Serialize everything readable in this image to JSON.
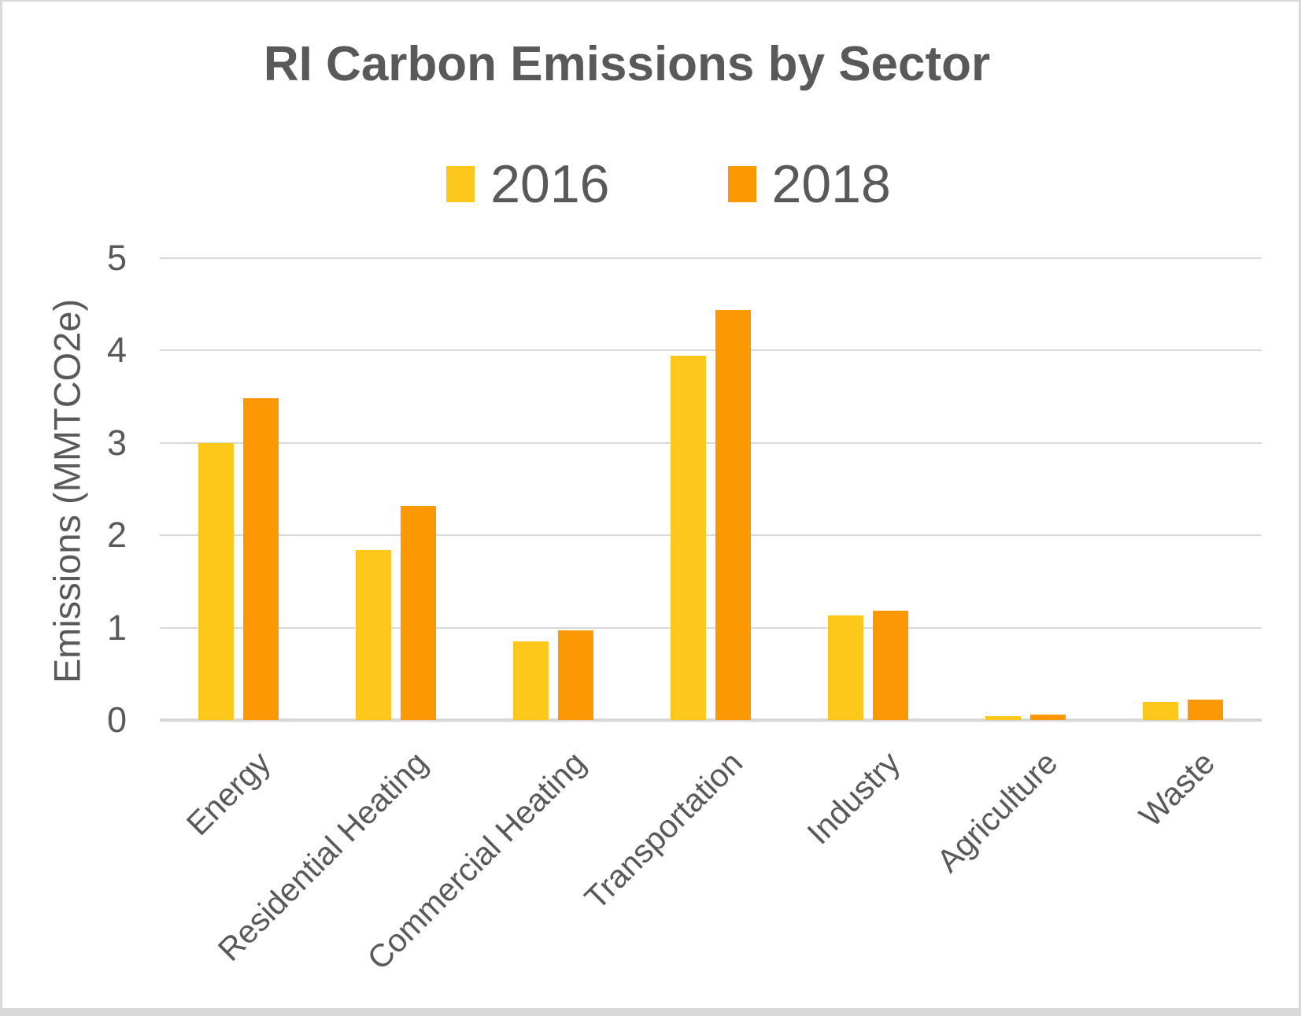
{
  "chart_data": {
    "type": "bar",
    "title": "RI Carbon Emissions by Sector",
    "ylabel": "Emissions (MMTCO2e)",
    "xlabel": "",
    "categories": [
      "Energy",
      "Residential Heating",
      "Commercial Heating",
      "Transportation",
      "Industry",
      "Agriculture",
      "Waste"
    ],
    "series": [
      {
        "name": "2016",
        "color": "#FEC71C",
        "values": [
          3.0,
          1.84,
          0.85,
          3.94,
          1.13,
          0.04,
          0.2
        ]
      },
      {
        "name": "2018",
        "color": "#FC9803",
        "values": [
          3.48,
          2.32,
          0.97,
          4.44,
          1.18,
          0.06,
          0.22
        ]
      }
    ],
    "ylim": [
      0,
      5
    ],
    "yticks": [
      0,
      1,
      2,
      3,
      4,
      5
    ],
    "grid": true,
    "legend_position": "top",
    "colors": {
      "gridline": "#d9d9d9",
      "text": "#595959",
      "background": "#ffffff"
    }
  }
}
